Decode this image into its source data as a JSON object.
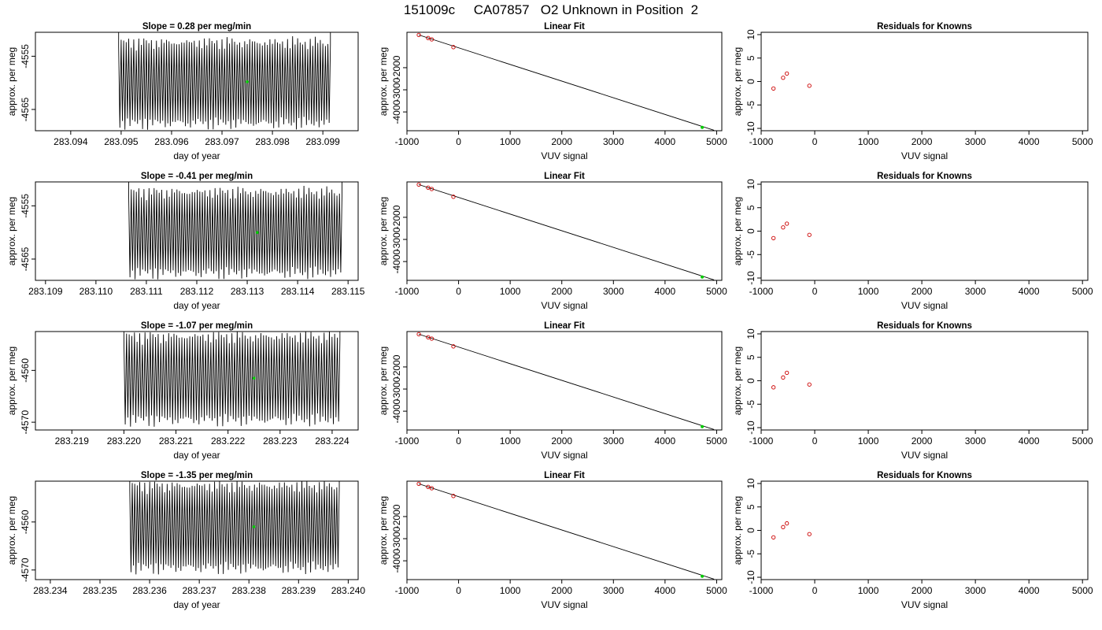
{
  "figure_title": "151009c     CA07857   O2 Unknown in Position  2",
  "colors": {
    "trace": "#000000",
    "unknown_point": "#00cc00",
    "known_point": "#cc0000",
    "frame": "#000000"
  },
  "chart_data": [
    {
      "panel": "timeseries-1",
      "type": "line",
      "title": "Slope =  0.28  per meg/min",
      "xlabel": "day of year",
      "ylabel": "approx. per meg",
      "xlim": [
        283.0933,
        283.0997
      ],
      "ylim": [
        -4569,
        -4550.5
      ],
      "xticks": [
        "283.094",
        "283.095",
        "283.096",
        "283.097",
        "283.098",
        "283.099"
      ],
      "yticks": [
        "-4555",
        "-4565"
      ],
      "trace": {
        "x_start": 283.09495,
        "x_end": 283.09915,
        "center": -4560,
        "amplitude": 8,
        "cycles": 84
      },
      "marker": {
        "x": 283.0975,
        "y": -4559.8
      }
    },
    {
      "panel": "linearfit-1",
      "type": "scatter",
      "title": "Linear Fit",
      "xlabel": "VUV signal",
      "ylabel": "approx. per meg",
      "xlim": [
        -1000,
        5100
      ],
      "ylim": [
        -4850,
        -400
      ],
      "xticks": [
        "-1000",
        "0",
        "1000",
        "2000",
        "3000",
        "4000",
        "5000"
      ],
      "yticks": [
        "-2000",
        "-3000",
        "-4000"
      ],
      "points": [
        [
          -770,
          -520
        ],
        [
          -590,
          -660
        ],
        [
          -520,
          -720
        ],
        [
          -100,
          -1070
        ]
      ],
      "unknown": [
        4720,
        -4700
      ],
      "fit_line": [
        [
          -770,
          -520
        ],
        [
          4950,
          -4830
        ]
      ]
    },
    {
      "panel": "residuals-1",
      "type": "scatter",
      "title": "Residuals for Knowns",
      "xlabel": "VUV signal",
      "ylabel": "approx. per meg",
      "xlim": [
        -1000,
        5100
      ],
      "ylim": [
        -10.5,
        10.5
      ],
      "xticks": [
        "-1000",
        "0",
        "1000",
        "2000",
        "3000",
        "4000",
        "5000"
      ],
      "yticks": [
        "-10",
        "-5",
        "0",
        "5",
        "10"
      ],
      "points": [
        [
          -770,
          -1.5
        ],
        [
          -590,
          0.8
        ],
        [
          -520,
          1.7
        ],
        [
          -100,
          -0.9
        ]
      ]
    },
    {
      "panel": "timeseries-2",
      "type": "line",
      "title": "Slope =  -0.41  per meg/min",
      "xlabel": "day of year",
      "ylabel": "approx. per meg",
      "xlim": [
        283.1088,
        283.1152
      ],
      "ylim": [
        -4569,
        -4550.5
      ],
      "xticks": [
        "283.109",
        "283.110",
        "283.111",
        "283.112",
        "283.113",
        "283.114",
        "283.115"
      ],
      "yticks": [
        "-4555",
        "-4565"
      ],
      "trace": {
        "x_start": 283.11065,
        "x_end": 283.11488,
        "center": -4560,
        "amplitude": 8,
        "cycles": 84
      },
      "marker": {
        "x": 283.1132,
        "y": -4560
      }
    },
    {
      "panel": "linearfit-2",
      "type": "scatter",
      "title": "Linear Fit",
      "xlabel": "VUV signal",
      "ylabel": "approx. per meg",
      "xlim": [
        -1000,
        5100
      ],
      "ylim": [
        -4850,
        -400
      ],
      "xticks": [
        "-1000",
        "0",
        "1000",
        "2000",
        "3000",
        "4000",
        "5000"
      ],
      "yticks": [
        "-2000",
        "-3000",
        "-4000"
      ],
      "points": [
        [
          -770,
          -520
        ],
        [
          -590,
          -660
        ],
        [
          -520,
          -720
        ],
        [
          -100,
          -1070
        ]
      ],
      "unknown": [
        4720,
        -4700
      ],
      "fit_line": [
        [
          -770,
          -520
        ],
        [
          4950,
          -4830
        ]
      ]
    },
    {
      "panel": "residuals-2",
      "type": "scatter",
      "title": "Residuals for Knowns",
      "xlabel": "VUV signal",
      "ylabel": "approx. per meg",
      "xlim": [
        -1000,
        5100
      ],
      "ylim": [
        -10.5,
        10.5
      ],
      "xticks": [
        "-1000",
        "0",
        "1000",
        "2000",
        "3000",
        "4000",
        "5000"
      ],
      "yticks": [
        "-10",
        "-5",
        "0",
        "5",
        "10"
      ],
      "points": [
        [
          -770,
          -1.5
        ],
        [
          -590,
          0.8
        ],
        [
          -520,
          1.6
        ],
        [
          -100,
          -0.8
        ]
      ]
    },
    {
      "panel": "timeseries-3",
      "type": "line",
      "title": "Slope =  -1.07  per meg/min",
      "xlabel": "day of year",
      "ylabel": "approx. per meg",
      "xlim": [
        283.2183,
        283.2245
      ],
      "ylim": [
        -4571.5,
        -4552.5
      ],
      "xticks": [
        "283.219",
        "283.220",
        "283.221",
        "283.222",
        "283.223",
        "283.224"
      ],
      "yticks": [
        "-4560",
        "-4570"
      ],
      "trace": {
        "x_start": 283.22,
        "x_end": 283.22415,
        "center": -4561.5,
        "amplitude": 8.5,
        "cycles": 82
      },
      "marker": {
        "x": 283.2225,
        "y": -4561.5
      }
    },
    {
      "panel": "linearfit-3",
      "type": "scatter",
      "title": "Linear Fit",
      "xlabel": "VUV signal",
      "ylabel": "approx. per meg",
      "xlim": [
        -1000,
        5100
      ],
      "ylim": [
        -4850,
        -400
      ],
      "xticks": [
        "-1000",
        "0",
        "1000",
        "2000",
        "3000",
        "4000",
        "5000"
      ],
      "yticks": [
        "-2000",
        "-3000",
        "-4000"
      ],
      "points": [
        [
          -770,
          -520
        ],
        [
          -590,
          -660
        ],
        [
          -520,
          -720
        ],
        [
          -100,
          -1070
        ]
      ],
      "unknown": [
        4720,
        -4700
      ],
      "fit_line": [
        [
          -770,
          -520
        ],
        [
          4950,
          -4830
        ]
      ]
    },
    {
      "panel": "residuals-3",
      "type": "scatter",
      "title": "Residuals for Knowns",
      "xlabel": "VUV signal",
      "ylabel": "approx. per meg",
      "xlim": [
        -1000,
        5100
      ],
      "ylim": [
        -10.5,
        10.5
      ],
      "xticks": [
        "-1000",
        "0",
        "1000",
        "2000",
        "3000",
        "4000",
        "5000"
      ],
      "yticks": [
        "-10",
        "-5",
        "0",
        "5",
        "10"
      ],
      "points": [
        [
          -770,
          -1.4
        ],
        [
          -590,
          0.7
        ],
        [
          -520,
          1.7
        ],
        [
          -100,
          -0.8
        ]
      ]
    },
    {
      "panel": "timeseries-4",
      "type": "line",
      "title": "Slope =  -1.35  per meg/min",
      "xlabel": "day of year",
      "ylabel": "approx. per meg",
      "xlim": [
        283.2337,
        283.2402
      ],
      "ylim": [
        -4572,
        -4551.5
      ],
      "xticks": [
        "283.234",
        "283.235",
        "283.236",
        "283.237",
        "283.238",
        "283.239",
        "283.240"
      ],
      "yticks": [
        "-4560",
        "-4570"
      ],
      "trace": {
        "x_start": 283.2356,
        "x_end": 283.23982,
        "center": -4561,
        "amplitude": 9,
        "cycles": 84
      },
      "marker": {
        "x": 283.2381,
        "y": -4561
      }
    },
    {
      "panel": "linearfit-4",
      "type": "scatter",
      "title": "Linear Fit",
      "xlabel": "VUV signal",
      "ylabel": "approx. per meg",
      "xlim": [
        -1000,
        5100
      ],
      "ylim": [
        -4850,
        -400
      ],
      "xticks": [
        "-1000",
        "0",
        "1000",
        "2000",
        "3000",
        "4000",
        "5000"
      ],
      "yticks": [
        "-2000",
        "-3000",
        "-4000"
      ],
      "points": [
        [
          -770,
          -520
        ],
        [
          -590,
          -660
        ],
        [
          -520,
          -720
        ],
        [
          -100,
          -1070
        ]
      ],
      "unknown": [
        4720,
        -4700
      ],
      "fit_line": [
        [
          -770,
          -520
        ],
        [
          4950,
          -4830
        ]
      ]
    },
    {
      "panel": "residuals-4",
      "type": "scatter",
      "title": "Residuals for Knowns",
      "xlabel": "VUV signal",
      "ylabel": "approx. per meg",
      "xlim": [
        -1000,
        5100
      ],
      "ylim": [
        -10.5,
        10.5
      ],
      "xticks": [
        "-1000",
        "0",
        "1000",
        "2000",
        "3000",
        "4000",
        "5000"
      ],
      "yticks": [
        "-10",
        "-5",
        "0",
        "5",
        "10"
      ],
      "points": [
        [
          -770,
          -1.5
        ],
        [
          -590,
          0.7
        ],
        [
          -520,
          1.5
        ],
        [
          -100,
          -0.8
        ]
      ]
    }
  ]
}
